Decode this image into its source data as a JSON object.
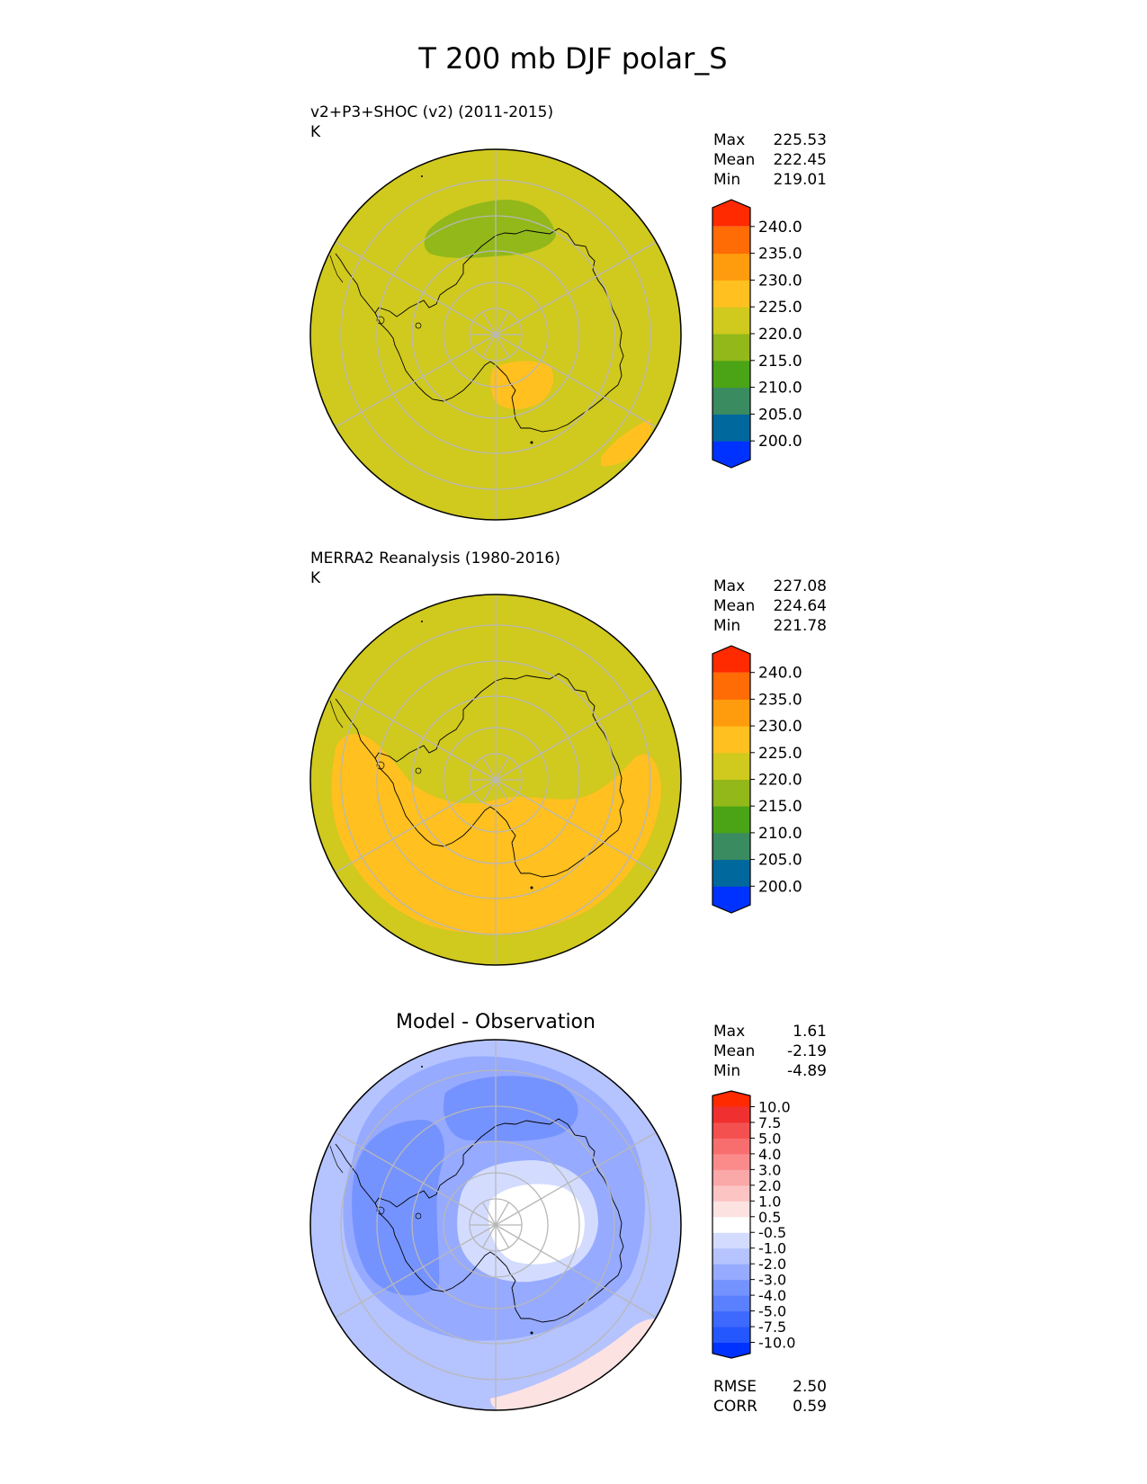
{
  "figure": {
    "title": "T 200 mb DJF polar_S"
  },
  "colors": {
    "abs_levels": [
      "#0032ff",
      "#00689d",
      "#3a8b60",
      "#4aa416",
      "#92b81a",
      "#d0c91e",
      "#ffc020",
      "#ff9c0e",
      "#ff6b04",
      "#ff2a00"
    ],
    "diff_levels": [
      "#0032ff",
      "#2557ff",
      "#3d69ff",
      "#5a80ff",
      "#7593ff",
      "#96aaff",
      "#b5c3ff",
      "#d3dcff",
      "#ffffff",
      "#fde2e2",
      "#fdc4c4",
      "#fba8a8",
      "#fb8b8b",
      "#f86e6e",
      "#f55050",
      "#f03030",
      "#ff2a00"
    ],
    "coast": "#000000",
    "grid": "#b8b8b8"
  },
  "chart_data": [
    {
      "type": "heatmap",
      "projection": "south-polar-stereographic",
      "title": "v2+P3+SHOC (v2) (2011-2015)",
      "units": "K",
      "stats": {
        "max": "225.53",
        "mean": "222.45",
        "min": "219.01"
      },
      "colorbar_ticks": [
        "240.0",
        "235.0",
        "230.0",
        "225.0",
        "220.0",
        "215.0",
        "210.0",
        "205.0",
        "200.0"
      ],
      "background_level": "220-225",
      "regions": [
        {
          "level": "215-220",
          "location": "Weddell Sea sector / Antarctic Peninsula side, over the continent edge"
        },
        {
          "level": "225-230",
          "location": "Ross Ice Shelf sector"
        },
        {
          "level": "225-230",
          "location": "far southern-ocean edge, lower right"
        }
      ]
    },
    {
      "type": "heatmap",
      "projection": "south-polar-stereographic",
      "title": "MERRA2 Reanalysis (1980-2016)",
      "units": "K",
      "stats": {
        "max": "227.08",
        "mean": "224.64",
        "min": "221.78"
      },
      "colorbar_ticks": [
        "240.0",
        "235.0",
        "230.0",
        "225.0",
        "220.0",
        "215.0",
        "210.0",
        "205.0",
        "200.0"
      ],
      "background_level": "220-225",
      "regions": [
        {
          "level": "225-230",
          "location": "broad band over Pacific / Ross sector and surrounding ocean"
        }
      ]
    },
    {
      "type": "heatmap",
      "projection": "south-polar-stereographic",
      "title": "Model - Observation",
      "stats": {
        "max": "1.61",
        "mean": "-2.19",
        "min": "-4.89"
      },
      "metrics": {
        "rmse_label": "RMSE",
        "rmse": "2.50",
        "corr_label": "CORR",
        "corr": "0.59"
      },
      "colorbar_ticks": [
        "10.0",
        "7.5",
        "5.0",
        "4.0",
        "3.0",
        "2.0",
        "1.0",
        "0.5",
        "-0.5",
        "-1.0",
        "-2.0",
        "-3.0",
        "-4.0",
        "-5.0",
        "-7.5",
        "-10.0"
      ],
      "background_level": "-2 to -1",
      "regions": [
        {
          "level": "-4 to -3",
          "location": "Weddell Sea sector and Antarctic Peninsula side"
        },
        {
          "level": "-0.5 to 0.5",
          "location": "East Antarctic plateau near the pole"
        },
        {
          "level": "0.5 to 1.0",
          "location": "outer southern ocean edge, lower right"
        }
      ]
    }
  ],
  "stat_labels": {
    "max": "Max",
    "mean": "Mean",
    "min": "Min"
  }
}
